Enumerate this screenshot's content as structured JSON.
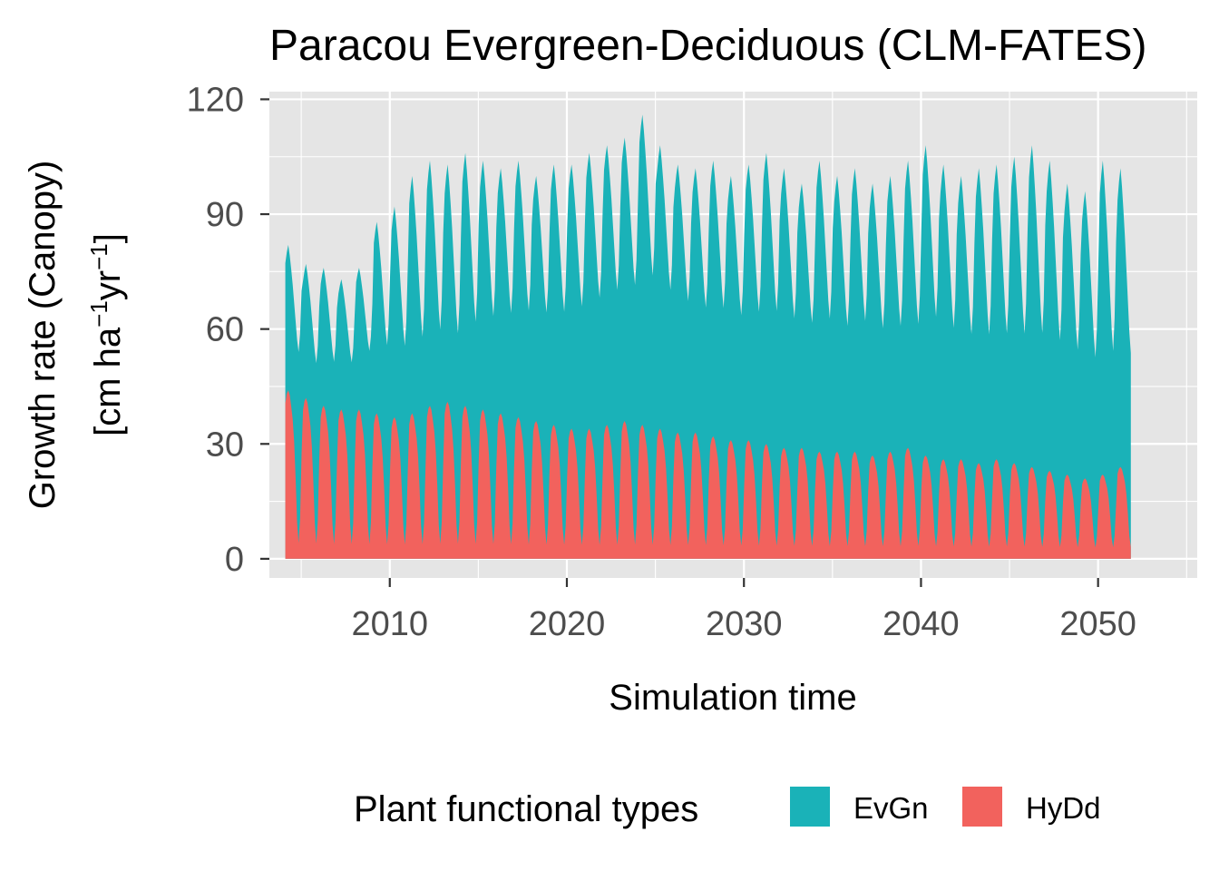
{
  "chart_data": {
    "type": "area",
    "stacked": true,
    "title": "Paracou Evergreen-Deciduous (CLM-FATES)",
    "xlabel": "Simulation time",
    "ylabel_line1": "Growth rate (Canopy)",
    "ylabel_line2": {
      "pre": "[cm ha",
      "sup1": "−1",
      "mid": "yr",
      "sup2": "−1",
      "post": "]"
    },
    "xlim": [
      2003.2,
      2055.6
    ],
    "ylim": [
      -5,
      122
    ],
    "x_ticks": [
      2010,
      2020,
      2030,
      2040,
      2050
    ],
    "x_tick_labels": [
      "2010",
      "2020",
      "2030",
      "2040",
      "2050"
    ],
    "x_minor_ticks": [
      2005,
      2015,
      2025,
      2035,
      2045,
      2055
    ],
    "y_ticks": [
      0,
      30,
      60,
      90,
      120
    ],
    "y_tick_labels": [
      "0",
      "30",
      "60",
      "90",
      "120"
    ],
    "grid": true,
    "panel_background": "#e5e5e5",
    "grid_color": "#ffffff",
    "x_start": 2004.1,
    "x_end": 2051.9,
    "legend": {
      "title": "Plant functional types",
      "position": "bottom",
      "entries": [
        {
          "label": "EvGn",
          "color": "#1ab2b8"
        },
        {
          "label": "HyDd",
          "color": "#f2625d"
        }
      ]
    },
    "series": [
      {
        "name": "HyDd",
        "color": "#f2625d",
        "annual_peak": [
          44,
          42,
          40,
          39,
          39,
          38,
          37,
          38,
          40,
          41,
          40,
          39,
          38,
          37,
          36,
          35,
          34,
          34,
          35,
          36,
          35,
          34,
          33,
          33,
          32,
          31,
          31,
          30,
          29,
          29,
          28,
          28,
          28,
          27,
          28,
          29,
          27,
          26,
          26,
          25,
          26,
          25,
          24,
          23,
          22,
          21,
          22,
          24
        ],
        "annual_trough": [
          2,
          2,
          2,
          2,
          2,
          2,
          2,
          2,
          2,
          2,
          2,
          2,
          2,
          2,
          2,
          2,
          2,
          2,
          2,
          2,
          2,
          2,
          2,
          2,
          2,
          2,
          2,
          2,
          2,
          2,
          2,
          2,
          2,
          2,
          2,
          2,
          2,
          2,
          2,
          2,
          2,
          2,
          2,
          2,
          2,
          2,
          2,
          2
        ]
      },
      {
        "name": "EvGn",
        "color": "#1ab2b8",
        "annual_peak": [
          82,
          77,
          76,
          73,
          76,
          88,
          92,
          100,
          104,
          103,
          106,
          104,
          102,
          104,
          100,
          103,
          103,
          106,
          108,
          110,
          116,
          108,
          103,
          102,
          104,
          100,
          103,
          106,
          102,
          98,
          104,
          100,
          102,
          98,
          100,
          104,
          108,
          103,
          100,
          102,
          103,
          105,
          108,
          104,
          98,
          96,
          104,
          102
        ],
        "annual_trough": [
          42,
          40,
          41,
          42,
          45,
          42,
          40,
          40,
          41,
          40,
          43,
          46,
          48,
          48,
          49,
          48,
          50,
          52,
          54,
          55,
          56,
          54,
          52,
          50,
          49,
          48,
          48,
          47,
          46,
          46,
          45,
          44,
          45,
          44,
          44,
          43,
          44,
          42,
          41,
          40,
          40,
          39,
          38,
          37,
          36,
          34,
          33,
          33
        ]
      }
    ]
  }
}
